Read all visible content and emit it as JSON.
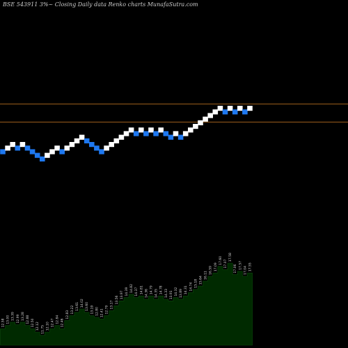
{
  "title": "BSE 543911 3%~  Closing Daily data  Renko  charts MunafaSutra.com",
  "colors": {
    "background": "#000000",
    "up_brick": "#ffffff",
    "down_brick": "#1e78f0",
    "level_line": "#a0601c",
    "area_fill": "#002a00"
  },
  "chart_data": {
    "type": "area",
    "subtype": "renko",
    "title": "BSE 543911 3%~  Closing Daily data  Renko  charts MunafaSutra.com",
    "bricks": [
      {
        "level": 0,
        "dir": "down"
      },
      {
        "level": 1,
        "dir": "up"
      },
      {
        "level": 2,
        "dir": "up"
      },
      {
        "level": 1,
        "dir": "down"
      },
      {
        "level": 2,
        "dir": "up"
      },
      {
        "level": 1,
        "dir": "down"
      },
      {
        "level": 0,
        "dir": "down"
      },
      {
        "level": -1,
        "dir": "down"
      },
      {
        "level": -2,
        "dir": "down"
      },
      {
        "level": -1,
        "dir": "up"
      },
      {
        "level": 0,
        "dir": "up"
      },
      {
        "level": 1,
        "dir": "up"
      },
      {
        "level": 0,
        "dir": "down"
      },
      {
        "level": 1,
        "dir": "up"
      },
      {
        "level": 2,
        "dir": "up"
      },
      {
        "level": 3,
        "dir": "up"
      },
      {
        "level": 4,
        "dir": "up"
      },
      {
        "level": 3,
        "dir": "down"
      },
      {
        "level": 2,
        "dir": "down"
      },
      {
        "level": 1,
        "dir": "down"
      },
      {
        "level": 0,
        "dir": "down"
      },
      {
        "level": 1,
        "dir": "up"
      },
      {
        "level": 2,
        "dir": "up"
      },
      {
        "level": 3,
        "dir": "up"
      },
      {
        "level": 4,
        "dir": "up"
      },
      {
        "level": 5,
        "dir": "up"
      },
      {
        "level": 6,
        "dir": "up"
      },
      {
        "level": 5,
        "dir": "down"
      },
      {
        "level": 6,
        "dir": "up"
      },
      {
        "level": 5,
        "dir": "down"
      },
      {
        "level": 6,
        "dir": "up"
      },
      {
        "level": 5,
        "dir": "down"
      },
      {
        "level": 6,
        "dir": "up"
      },
      {
        "level": 5,
        "dir": "down"
      },
      {
        "level": 4,
        "dir": "down"
      },
      {
        "level": 5,
        "dir": "up"
      },
      {
        "level": 4,
        "dir": "down"
      },
      {
        "level": 5,
        "dir": "up"
      },
      {
        "level": 6,
        "dir": "up"
      },
      {
        "level": 7,
        "dir": "up"
      },
      {
        "level": 8,
        "dir": "up"
      },
      {
        "level": 9,
        "dir": "up"
      },
      {
        "level": 10,
        "dir": "up"
      },
      {
        "level": 11,
        "dir": "up"
      },
      {
        "level": 12,
        "dir": "up"
      },
      {
        "level": 11,
        "dir": "down"
      },
      {
        "level": 12,
        "dir": "up"
      },
      {
        "level": 11,
        "dir": "down"
      },
      {
        "level": 12,
        "dir": "up"
      },
      {
        "level": 11,
        "dir": "down"
      },
      {
        "level": 12,
        "dir": "up"
      }
    ],
    "level_lines": [
      13,
      8
    ],
    "volume": [
      {
        "label": "12.58",
        "value": 20
      },
      {
        "label": "13.00",
        "value": 24
      },
      {
        "label": "13.39",
        "value": 28
      },
      {
        "label": "12.99",
        "value": 25
      },
      {
        "label": "13.28",
        "value": 28
      },
      {
        "label": "12.88",
        "value": 24
      },
      {
        "label": "12.50",
        "value": 20
      },
      {
        "label": "12.12",
        "value": 16
      },
      {
        "label": "11.75",
        "value": 12
      },
      {
        "label": "12.10",
        "value": 16
      },
      {
        "label": "12.47",
        "value": 20
      },
      {
        "label": "12.84",
        "value": 24
      },
      {
        "label": "12.46",
        "value": 20
      },
      {
        "label": "12.83",
        "value": 30
      },
      {
        "label": "13.22",
        "value": 36
      },
      {
        "label": "13.61",
        "value": 40
      },
      {
        "label": "14.02",
        "value": 44
      },
      {
        "label": "13.60",
        "value": 40
      },
      {
        "label": "13.19",
        "value": 36
      },
      {
        "label": "12.80",
        "value": 34
      },
      {
        "label": "12.41",
        "value": 32
      },
      {
        "label": "12.79",
        "value": 36
      },
      {
        "label": "13.17",
        "value": 42
      },
      {
        "label": "13.56",
        "value": 48
      },
      {
        "label": "13.97",
        "value": 54
      },
      {
        "label": "14.39",
        "value": 58
      },
      {
        "label": "14.82",
        "value": 62
      },
      {
        "label": "14.37",
        "value": 58
      },
      {
        "label": "14.81",
        "value": 60
      },
      {
        "label": "14.36",
        "value": 56
      },
      {
        "label": "14.79",
        "value": 60
      },
      {
        "label": "14.35",
        "value": 56
      },
      {
        "label": "14.78",
        "value": 60
      },
      {
        "label": "14.33",
        "value": 56
      },
      {
        "label": "13.91",
        "value": 54
      },
      {
        "label": "14.32",
        "value": 58
      },
      {
        "label": "13.89",
        "value": 56
      },
      {
        "label": "14.31",
        "value": 60
      },
      {
        "label": "14.74",
        "value": 64
      },
      {
        "label": "15.18",
        "value": 68
      },
      {
        "label": "15.64",
        "value": 72
      },
      {
        "label": "16.11",
        "value": 78
      },
      {
        "label": "16.59",
        "value": 84
      },
      {
        "label": "17.09",
        "value": 88
      },
      {
        "label": "17.60",
        "value": 96
      },
      {
        "label": "17.07",
        "value": 92
      },
      {
        "label": "17.58",
        "value": 100
      },
      {
        "label": "17.06",
        "value": 86
      },
      {
        "label": "17.57",
        "value": 90
      },
      {
        "label": "17.04",
        "value": 84
      },
      {
        "label": "17.55",
        "value": 88
      }
    ]
  }
}
